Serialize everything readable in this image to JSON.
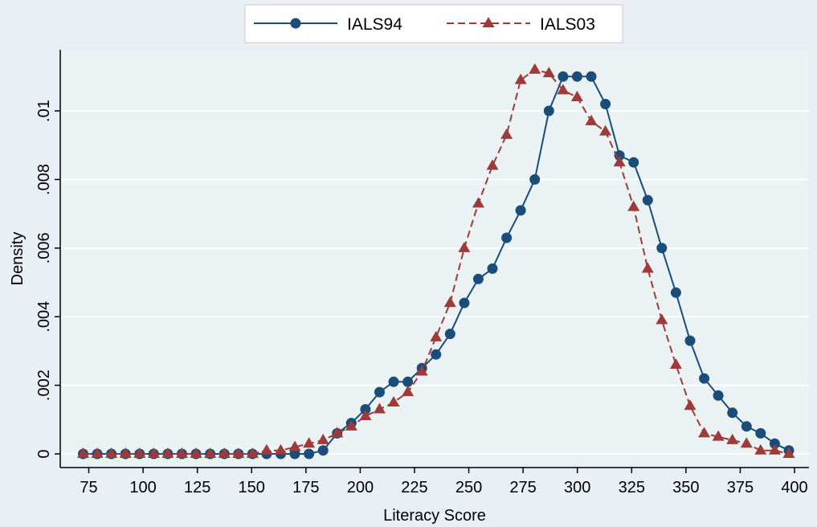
{
  "chart_data": {
    "type": "line",
    "title": "",
    "xlabel": "Literacy Score",
    "ylabel": "Density",
    "xlim": [
      70,
      400
    ],
    "ylim": [
      0,
      0.0115
    ],
    "x_ticks": [
      {
        "value": 75,
        "label": "75"
      },
      {
        "value": 100,
        "label": "100"
      },
      {
        "value": 125,
        "label": "125"
      },
      {
        "value": 150,
        "label": "150"
      },
      {
        "value": 175,
        "label": "175"
      },
      {
        "value": 200,
        "label": "200"
      },
      {
        "value": 225,
        "label": "225"
      },
      {
        "value": 250,
        "label": "250"
      },
      {
        "value": 275,
        "label": "275"
      },
      {
        "value": 300,
        "label": "300"
      },
      {
        "value": 325,
        "label": "325"
      },
      {
        "value": 350,
        "label": "350"
      },
      {
        "value": 375,
        "label": "375"
      },
      {
        "value": 400,
        "label": "400"
      }
    ],
    "y_ticks": [
      {
        "value": 0,
        "label": "0"
      },
      {
        "value": 0.002,
        "label": ".002"
      },
      {
        "value": 0.004,
        "label": ".004"
      },
      {
        "value": 0.006,
        "label": ".006"
      },
      {
        "value": 0.008,
        "label": ".008"
      },
      {
        "value": 0.01,
        "label": ".01"
      }
    ],
    "grid": true,
    "legend_position": "top",
    "x": [
      72.4,
      78.9,
      85.4,
      91.9,
      98.4,
      104.9,
      111.4,
      117.9,
      124.4,
      130.9,
      137.4,
      143.9,
      150.4,
      156.9,
      163.4,
      169.9,
      176.4,
      182.9,
      189.4,
      195.9,
      202.4,
      208.9,
      215.4,
      221.9,
      228.4,
      234.9,
      241.4,
      247.9,
      254.4,
      260.9,
      267.4,
      273.9,
      280.4,
      286.9,
      293.4,
      299.9,
      306.4,
      312.9,
      319.4,
      325.9,
      332.4,
      338.9,
      345.4,
      351.9,
      358.4,
      364.9,
      371.4,
      377.9,
      384.4,
      390.9,
      397.4
    ],
    "series": [
      {
        "name": "IALS94",
        "color": "#1a4d7a",
        "marker": "circle",
        "line_style": "solid",
        "values": [
          0,
          0,
          0,
          0,
          0,
          0,
          0,
          0,
          0,
          0,
          0,
          0,
          0,
          0,
          0,
          0,
          0,
          0.0001,
          0.0006,
          0.0009,
          0.0013,
          0.0018,
          0.0021,
          0.0021,
          0.0025,
          0.0029,
          0.0035,
          0.0044,
          0.0051,
          0.0054,
          0.0063,
          0.0071,
          0.008,
          0.01,
          0.011,
          0.011,
          0.011,
          0.0102,
          0.0087,
          0.0085,
          0.0074,
          0.006,
          0.0047,
          0.0033,
          0.0022,
          0.0017,
          0.0012,
          0.0008,
          0.0006,
          0.0003,
          0.0001
        ]
      },
      {
        "name": "IALS03",
        "color": "#9e3a3a",
        "marker": "triangle",
        "line_style": "dashed",
        "values": [
          0,
          0,
          0,
          0,
          0,
          0,
          0,
          0,
          0,
          0,
          0,
          0,
          0,
          0.0001,
          0.0001,
          0.0002,
          0.0003,
          0.0004,
          0.0006,
          0.0008,
          0.0011,
          0.0013,
          0.0015,
          0.0018,
          0.0024,
          0.0034,
          0.0044,
          0.006,
          0.0073,
          0.0084,
          0.0093,
          0.0109,
          0.0112,
          0.0111,
          0.0106,
          0.0104,
          0.0097,
          0.0094,
          0.0085,
          0.0072,
          0.0054,
          0.0039,
          0.0026,
          0.0014,
          0.0006,
          0.0005,
          0.0004,
          0.0003,
          0.0001,
          0.0001,
          0
        ]
      }
    ]
  }
}
